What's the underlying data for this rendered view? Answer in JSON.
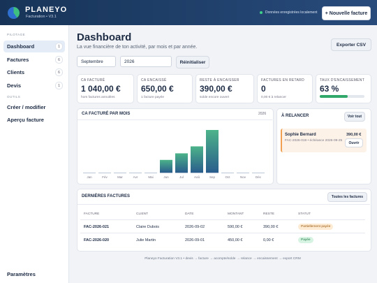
{
  "header": {
    "brand": "PLANEYO",
    "subtitle": "Facturation • V3.1",
    "status": "Données enregistrées localement",
    "new_button": "+ Nouvelle facture"
  },
  "sidebar": {
    "sections": [
      {
        "title": "PILOTAGE",
        "items": [
          {
            "label": "Dashboard",
            "count": 1
          },
          {
            "label": "Factures",
            "count": 6
          },
          {
            "label": "Clients",
            "count": 6
          },
          {
            "label": "Devis",
            "count": 1
          }
        ]
      },
      {
        "title": "OUTILS",
        "items": [
          {
            "label": "Créer / modifier"
          },
          {
            "label": "Aperçu facture"
          }
        ]
      }
    ],
    "settings": "Paramètres"
  },
  "page": {
    "title": "Dashboard",
    "subtitle": "La vue financière de ton activité, par mois et par année.",
    "export_button": "Exporter CSV",
    "filters": {
      "month": "Septembre",
      "year": "2026",
      "reset": "Réinitialiser"
    }
  },
  "kpis": [
    {
      "label": "CA FACTURÉ",
      "value": "1 040,00 €",
      "note": "hors factures annulées"
    },
    {
      "label": "CA ENCAISSÉ",
      "value": "650,00 €",
      "note": "1 facture payée"
    },
    {
      "label": "RESTE À ENCAISSER",
      "value": "390,00 €",
      "note": "solde encore ouvert"
    },
    {
      "label": "FACTURES EN RETARD",
      "value": "0",
      "note": "0,00 € à relancer"
    },
    {
      "label": "TAUX D'ENCAISSEMENT",
      "value": {
        "value": 63,
        "label": "63 %"
      }
    }
  ],
  "chart_data": {
    "type": "bar",
    "title": "CA FACTURÉ PAR MOIS",
    "subtitle": "2026",
    "categories": [
      "Jan",
      "Fév",
      "Mar",
      "Avr",
      "Mai",
      "Jun",
      "Jul",
      "Aoû",
      "Sep",
      "Oct",
      "Nov",
      "Déc"
    ],
    "values": [
      0,
      0,
      0,
      0,
      0,
      310,
      470,
      640,
      1040,
      0,
      0,
      0
    ]
  },
  "reminders": {
    "title": "À RELANCER",
    "button": "Voir tout",
    "items": [
      {
        "client": "Sophie Bernard",
        "amount": "390,00 €",
        "detail": "FAC-2026-019 • échéance 2026-09-25",
        "action": "Ouvrir"
      }
    ]
  },
  "table": {
    "title": "DERNIÈRES FACTURES",
    "button": "Toutes les factures",
    "columns": [
      "FACTURE",
      "CLIENT",
      "DATE",
      "MONTANT",
      "RESTE",
      "STATUT"
    ],
    "rows": [
      [
        "FAC-2026-021",
        "Claire Dubois",
        "2026-09-02",
        "590,00 €",
        "390,00 €",
        "Partiellement payée"
      ],
      [
        "FAC-2026-020",
        "Julie Martin",
        "2026-09-01",
        "450,00 €",
        "0,00 €",
        "Payée"
      ]
    ]
  },
  "footer": "Planeyo Facturation V3.1 • devis → facture → acompte/solde → relance → encaissement → export CRM"
}
